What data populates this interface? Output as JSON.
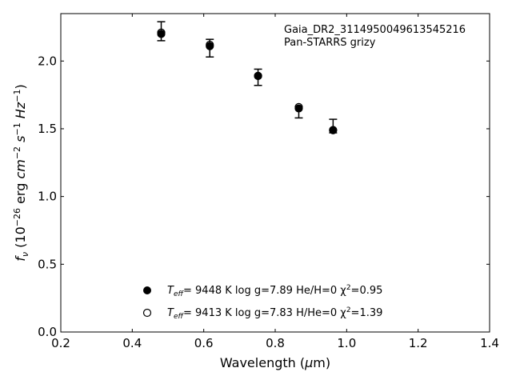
{
  "chart_data": {
    "type": "scatter",
    "annotations": [
      "Gaia_DR2_3114950049613545216",
      "Pan-STARRS grizy"
    ],
    "xlabel": "Wavelength (μm)",
    "ylabel": "fν (10⁻²⁶ erg cm⁻² s⁻¹ Hz⁻¹)",
    "xlim": [
      0.2,
      1.4
    ],
    "ylim": [
      0.0,
      2.35
    ],
    "xticks": [
      "0.2",
      "0.4",
      "0.6",
      "0.8",
      "1.0",
      "1.2",
      "1.4"
    ],
    "yticks": [
      "0.0",
      "0.5",
      "1.0",
      "1.5",
      "2.0"
    ],
    "ticks_inward": true,
    "grid": false,
    "legend_position": "bottom-center",
    "observed": {
      "x": [
        0.481,
        0.617,
        0.752,
        0.866,
        0.962
      ],
      "y": [
        2.22,
        2.1,
        1.88,
        1.62,
        1.5
      ],
      "err_low": [
        0.07,
        0.07,
        0.06,
        0.04,
        0.03
      ],
      "err_high": [
        0.07,
        0.06,
        0.06,
        0.04,
        0.07
      ]
    },
    "series": [
      {
        "marker": "filled-circle",
        "label_teff_sym": "T",
        "label_teff_sub": "eff",
        "label_rest": "=  9448 K  log g=7.89  He/H=0  χ",
        "label_chi_sup": "2",
        "label_chi_val": "=0.95",
        "x": [
          0.481,
          0.617,
          0.752,
          0.866,
          0.962
        ],
        "y": [
          2.2,
          2.11,
          1.89,
          1.65,
          1.49
        ]
      },
      {
        "marker": "open-circle",
        "label_teff_sym": "T",
        "label_teff_sub": "eff",
        "label_rest": "=  9413 K  log g=7.83  H/He=0  χ",
        "label_chi_sup": "2",
        "label_chi_val": "=1.39",
        "x": [
          0.481,
          0.617,
          0.752,
          0.866,
          0.962
        ],
        "y": [
          2.21,
          2.12,
          1.89,
          1.66,
          1.49
        ]
      }
    ]
  }
}
